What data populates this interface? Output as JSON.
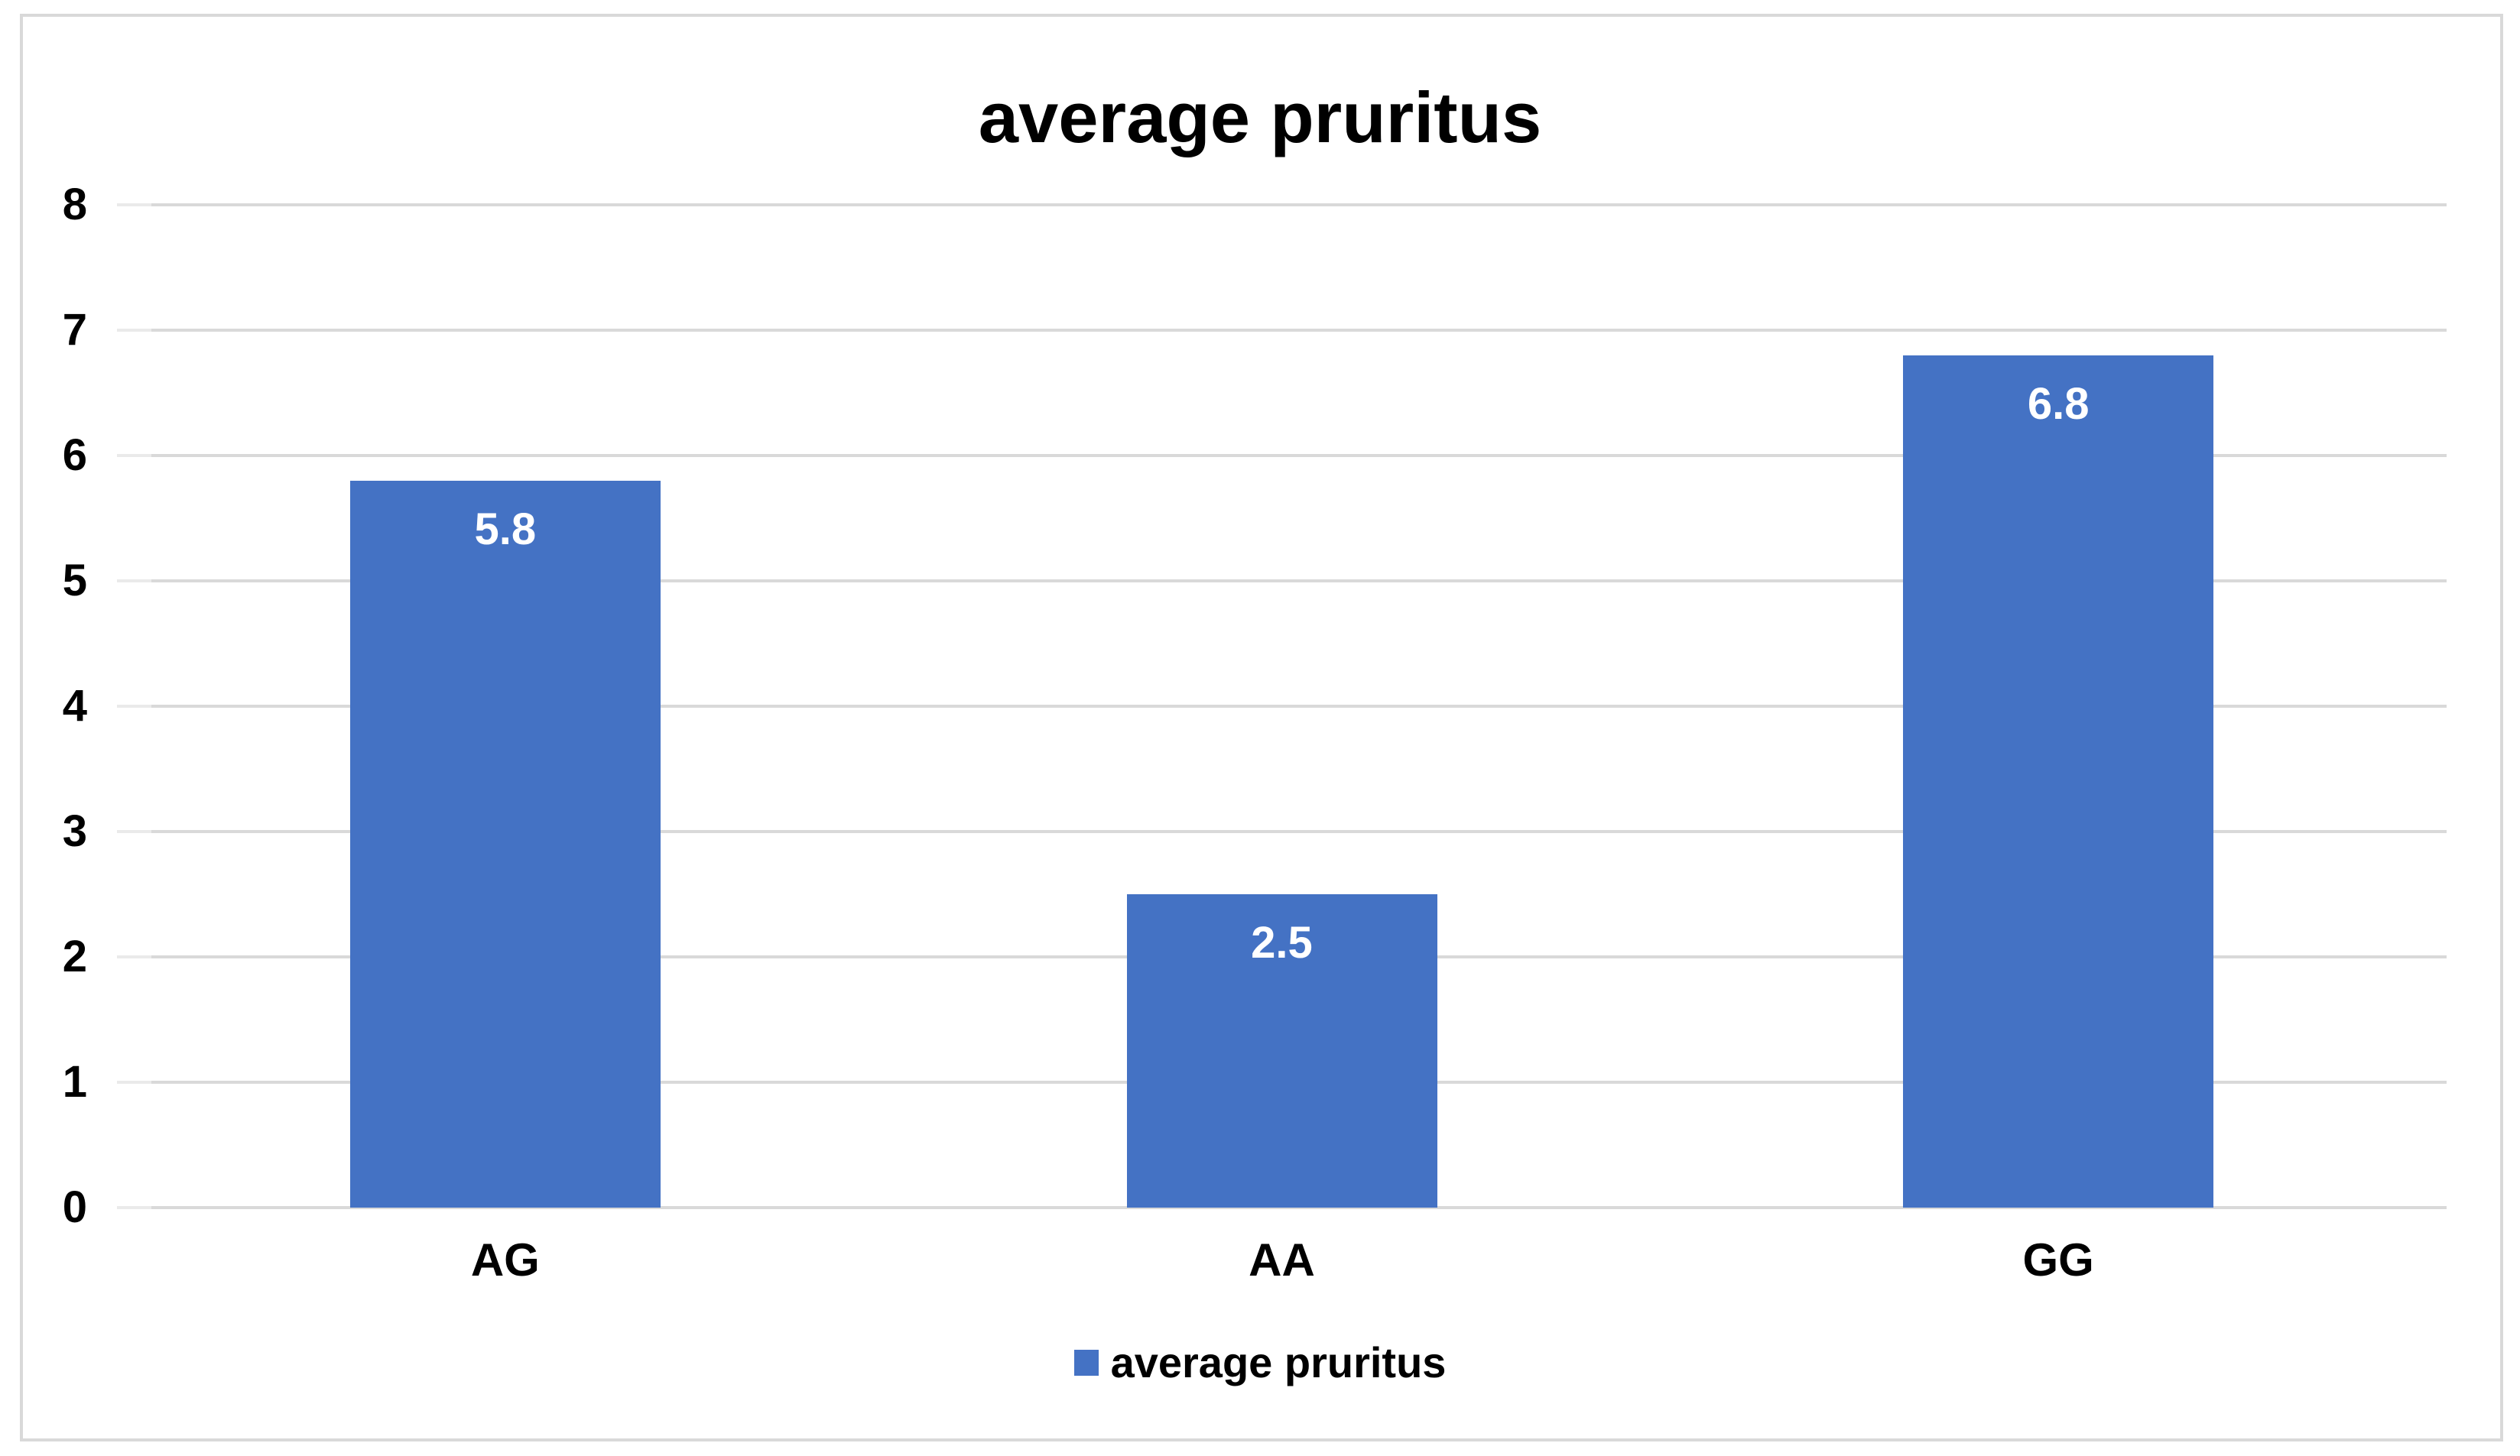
{
  "window": {
    "background": "#ffffff",
    "border_color": "#d9d9d9"
  },
  "chart_data": {
    "type": "bar",
    "title": "average pruritus",
    "categories": [
      "AG",
      "AA",
      "GG"
    ],
    "series": [
      {
        "name": "average pruritus",
        "values": [
          5.8,
          2.5,
          6.8
        ],
        "color": "#4472C4"
      }
    ],
    "data_labels": [
      "5.8",
      "2.5",
      "6.8"
    ],
    "data_label_color": "#ffffff",
    "xlabel": "",
    "ylabel": "",
    "ylim": [
      0,
      8
    ],
    "ytick_interval": 1,
    "yticks": [
      "0",
      "1",
      "2",
      "3",
      "4",
      "5",
      "6",
      "7",
      "8"
    ],
    "grid": true,
    "gridline_color": "#d9d9d9",
    "legend_position": "bottom",
    "legend": {
      "label": "average pruritus",
      "swatch_color": "#4472C4"
    }
  }
}
